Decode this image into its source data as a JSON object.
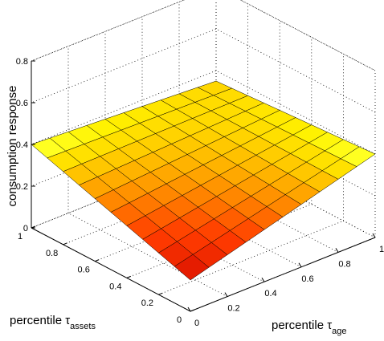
{
  "chart_data": {
    "type": "surface",
    "title": "",
    "xlabel": {
      "prefix": "percentile ",
      "symbol": "τ",
      "subscript": "age"
    },
    "ylabel": {
      "prefix": "percentile ",
      "symbol": "τ",
      "subscript": "assets"
    },
    "zlabel": "consumption response",
    "xlim": [
      0,
      1
    ],
    "ylim": [
      0,
      1
    ],
    "zlim": [
      0,
      0.8
    ],
    "xticks": [
      "0",
      "0.2",
      "0.4",
      "0.6",
      "0.8",
      "1"
    ],
    "yticks": [
      "0",
      "0.2",
      "0.4",
      "0.6",
      "0.8",
      "1"
    ],
    "zticks": [
      "0",
      "0.2",
      "0.4",
      "0.6",
      "0.8"
    ],
    "grid": true,
    "colormap": "hot",
    "x": [
      0,
      0.1,
      0.2,
      0.3,
      0.4,
      0.5,
      0.6,
      0.7,
      0.8,
      0.9,
      1
    ],
    "y": [
      0,
      0.1,
      0.2,
      0.3,
      0.4,
      0.5,
      0.6,
      0.7,
      0.8,
      0.9,
      1
    ],
    "corner_values": {
      "x0_y0": 0.15,
      "x1_y0": 0.4,
      "x0_y1": 0.4,
      "x1_y1": 0.35
    }
  }
}
